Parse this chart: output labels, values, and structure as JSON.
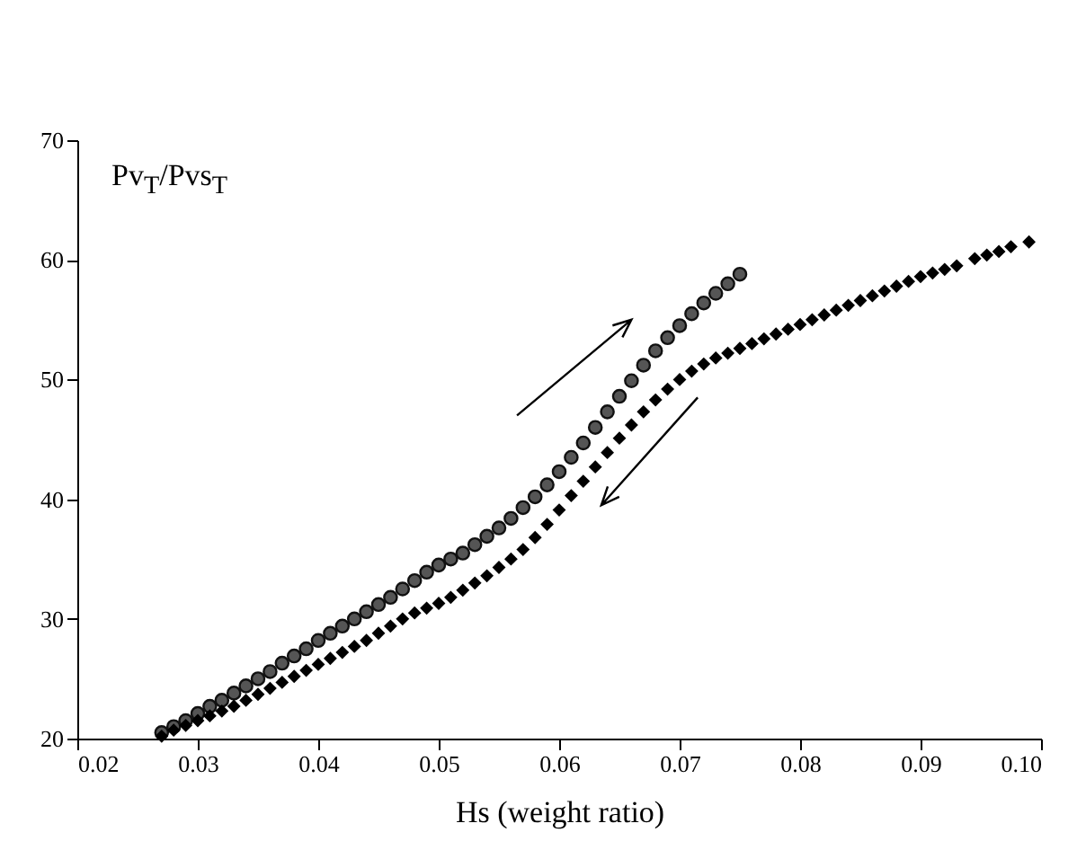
{
  "chart_data": {
    "type": "scatter",
    "xlabel": "Hs (weight ratio)",
    "ylabel": "Pv$_{T}$/Pvs$_{T}$",
    "xlim": [
      0.02,
      0.1
    ],
    "xticks": [
      0.02,
      0.03,
      0.04,
      0.05,
      0.06,
      0.07,
      0.08,
      0.09,
      {
        "value": 0.1,
        "label": "0.10"
      }
    ],
    "ylim": [
      20,
      70
    ],
    "yticks": [
      20,
      30,
      40,
      50,
      60,
      70
    ],
    "series": [
      {
        "color": "#555555",
        "marker": "circle",
        "x": [
          0.027,
          0.028,
          0.029,
          0.03,
          0.031,
          0.032,
          0.033,
          0.034,
          0.035,
          0.036,
          0.037,
          0.038,
          0.039,
          0.04,
          0.041,
          0.042,
          0.043,
          0.044,
          0.045,
          0.046,
          0.047,
          0.048,
          0.049,
          0.05,
          0.051,
          0.052,
          0.053,
          0.054,
          0.055,
          0.056,
          0.057,
          0.058,
          0.059,
          0.06,
          0.061,
          0.062,
          0.063,
          0.064,
          0.065,
          0.066,
          0.067,
          0.068,
          0.069,
          0.07,
          0.071,
          0.072,
          0.073,
          0.074,
          0.075
        ],
        "values": [
          20.5,
          21.0,
          21.5,
          22.1,
          22.7,
          23.2,
          23.8,
          24.4,
          25.0,
          25.6,
          26.3,
          26.9,
          27.5,
          28.2,
          28.8,
          29.4,
          30.0,
          30.6,
          31.2,
          31.8,
          32.5,
          33.2,
          33.9,
          34.5,
          35.0,
          35.5,
          36.2,
          36.9,
          37.6,
          38.4,
          39.3,
          40.2,
          41.2,
          42.3,
          43.5,
          44.7,
          46.0,
          47.3,
          48.6,
          49.9,
          51.2,
          52.4,
          53.5,
          54.5,
          55.5,
          56.4,
          57.2,
          58.0,
          58.8
        ]
      },
      {
        "color": "#000000",
        "marker": "diamond",
        "x": [
          0.027,
          0.028,
          0.029,
          0.03,
          0.031,
          0.032,
          0.033,
          0.034,
          0.035,
          0.036,
          0.037,
          0.038,
          0.039,
          0.04,
          0.041,
          0.042,
          0.043,
          0.044,
          0.045,
          0.046,
          0.047,
          0.048,
          0.049,
          0.05,
          0.051,
          0.052,
          0.053,
          0.054,
          0.055,
          0.056,
          0.057,
          0.058,
          0.059,
          0.06,
          0.061,
          0.062,
          0.063,
          0.064,
          0.065,
          0.066,
          0.067,
          0.068,
          0.069,
          0.07,
          0.071,
          0.072,
          0.073,
          0.074,
          0.075,
          0.076,
          0.077,
          0.078,
          0.079,
          0.08,
          0.081,
          0.082,
          0.083,
          0.084,
          0.085,
          0.086,
          0.087,
          0.088,
          0.089,
          0.09,
          0.091,
          0.092,
          0.093,
          0.0945,
          0.0955,
          0.0965,
          0.0975,
          0.099
        ],
        "values": [
          20.2,
          20.7,
          21.1,
          21.5,
          21.9,
          22.3,
          22.7,
          23.2,
          23.7,
          24.2,
          24.7,
          25.2,
          25.7,
          26.2,
          26.7,
          27.2,
          27.7,
          28.2,
          28.8,
          29.4,
          30.0,
          30.5,
          30.9,
          31.3,
          31.8,
          32.4,
          33.0,
          33.6,
          34.3,
          35.0,
          35.8,
          36.8,
          37.9,
          39.1,
          40.3,
          41.5,
          42.7,
          43.9,
          45.1,
          46.2,
          47.3,
          48.3,
          49.2,
          50.0,
          50.7,
          51.3,
          51.8,
          52.2,
          52.6,
          53.0,
          53.4,
          53.8,
          54.2,
          54.6,
          55.0,
          55.4,
          55.8,
          56.2,
          56.6,
          57.0,
          57.4,
          57.8,
          58.2,
          58.6,
          58.9,
          59.2,
          59.5,
          60.1,
          60.4,
          60.7,
          61.1,
          61.5
        ]
      }
    ]
  }
}
